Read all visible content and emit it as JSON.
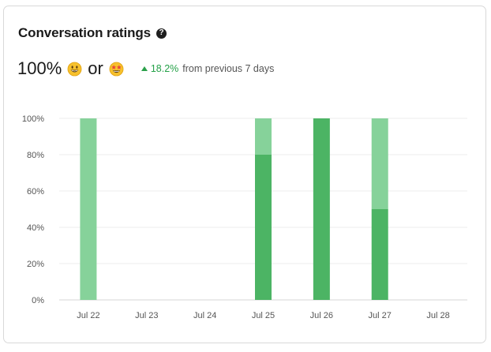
{
  "header": {
    "title": "Conversation ratings",
    "help_icon": "question-circle-icon"
  },
  "summary": {
    "value": "100%",
    "emoji_1": "grinning-face-emoji",
    "or_text": "or",
    "emoji_2": "star-struck-emoji",
    "change_value": "18.2%",
    "change_text": "from previous 7 days",
    "change_direction": "up"
  },
  "colors": {
    "light_green": "#86d29a",
    "dark_green": "#4cb464",
    "positive_text": "#24a148",
    "grid": "#eeeeee"
  },
  "chart_data": {
    "type": "bar",
    "stacked": true,
    "categories": [
      "Jul 22",
      "Jul 23",
      "Jul 24",
      "Jul 25",
      "Jul 26",
      "Jul 27",
      "Jul 28"
    ],
    "y_ticks": [
      "0%",
      "20%",
      "40%",
      "60%",
      "80%",
      "100%"
    ],
    "ylim": [
      0,
      100
    ],
    "grid": true,
    "series": [
      {
        "emoji": "star-struck-emoji",
        "color": "#4cb464",
        "values": [
          0,
          0,
          0,
          80,
          100,
          50,
          0
        ]
      },
      {
        "emoji": "grinning-face-emoji",
        "color": "#86d29a",
        "values": [
          100,
          0,
          0,
          20,
          0,
          50,
          0
        ]
      }
    ]
  }
}
